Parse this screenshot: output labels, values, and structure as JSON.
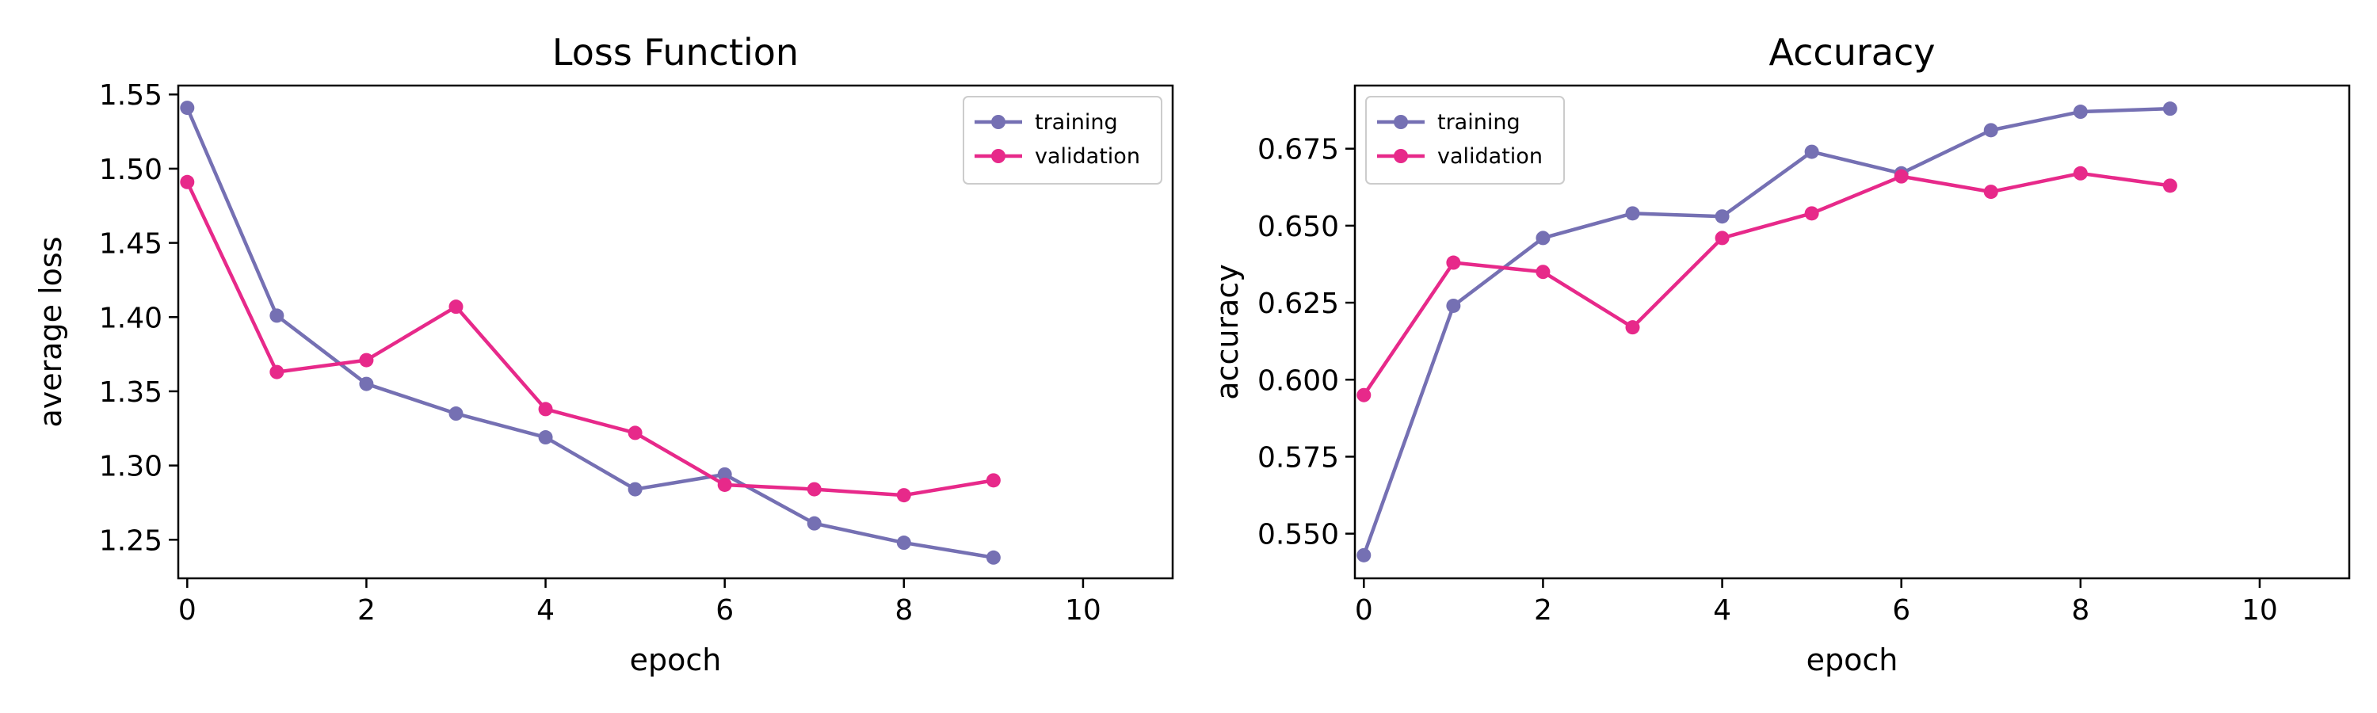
{
  "chart_data": [
    {
      "type": "line",
      "title": "Loss Function",
      "xlabel": "epoch",
      "ylabel": "average loss",
      "xlim": [
        -0.1,
        11
      ],
      "ylim": [
        1.224,
        1.556
      ],
      "xticks": [
        0,
        2,
        4,
        6,
        8,
        10
      ],
      "yticks": [
        1.25,
        1.3,
        1.35,
        1.4,
        1.45,
        1.5,
        1.55
      ],
      "ytick_labels": [
        "1.25",
        "1.30",
        "1.35",
        "1.40",
        "1.45",
        "1.50",
        "1.55"
      ],
      "legend_position": "top-right",
      "x": [
        0,
        1,
        2,
        3,
        4,
        5,
        6,
        7,
        8,
        9
      ],
      "series": [
        {
          "name": "training",
          "color": "#7570b3",
          "values": [
            1.541,
            1.401,
            1.355,
            1.335,
            1.319,
            1.284,
            1.294,
            1.261,
            1.248,
            1.238
          ]
        },
        {
          "name": "validation",
          "color": "#e7298a",
          "values": [
            1.491,
            1.363,
            1.371,
            1.407,
            1.338,
            1.322,
            1.287,
            1.284,
            1.28,
            1.29
          ]
        }
      ]
    },
    {
      "type": "line",
      "title": "Accuracy",
      "xlabel": "epoch",
      "ylabel": "accuracy",
      "xlim": [
        -0.1,
        11
      ],
      "ylim": [
        0.5355,
        0.6955
      ],
      "xticks": [
        0,
        2,
        4,
        6,
        8,
        10
      ],
      "yticks": [
        0.55,
        0.575,
        0.6,
        0.625,
        0.65,
        0.675
      ],
      "ytick_labels": [
        "0.550",
        "0.575",
        "0.600",
        "0.625",
        "0.650",
        "0.675"
      ],
      "legend_position": "top-left",
      "x": [
        0,
        1,
        2,
        3,
        4,
        5,
        6,
        7,
        8,
        9
      ],
      "series": [
        {
          "name": "training",
          "color": "#7570b3",
          "values": [
            0.543,
            0.624,
            0.646,
            0.654,
            0.653,
            0.674,
            0.667,
            0.681,
            0.687,
            0.688
          ]
        },
        {
          "name": "validation",
          "color": "#e7298a",
          "values": [
            0.595,
            0.638,
            0.635,
            0.617,
            0.646,
            0.654,
            0.666,
            0.661,
            0.667,
            0.663
          ]
        }
      ]
    }
  ]
}
